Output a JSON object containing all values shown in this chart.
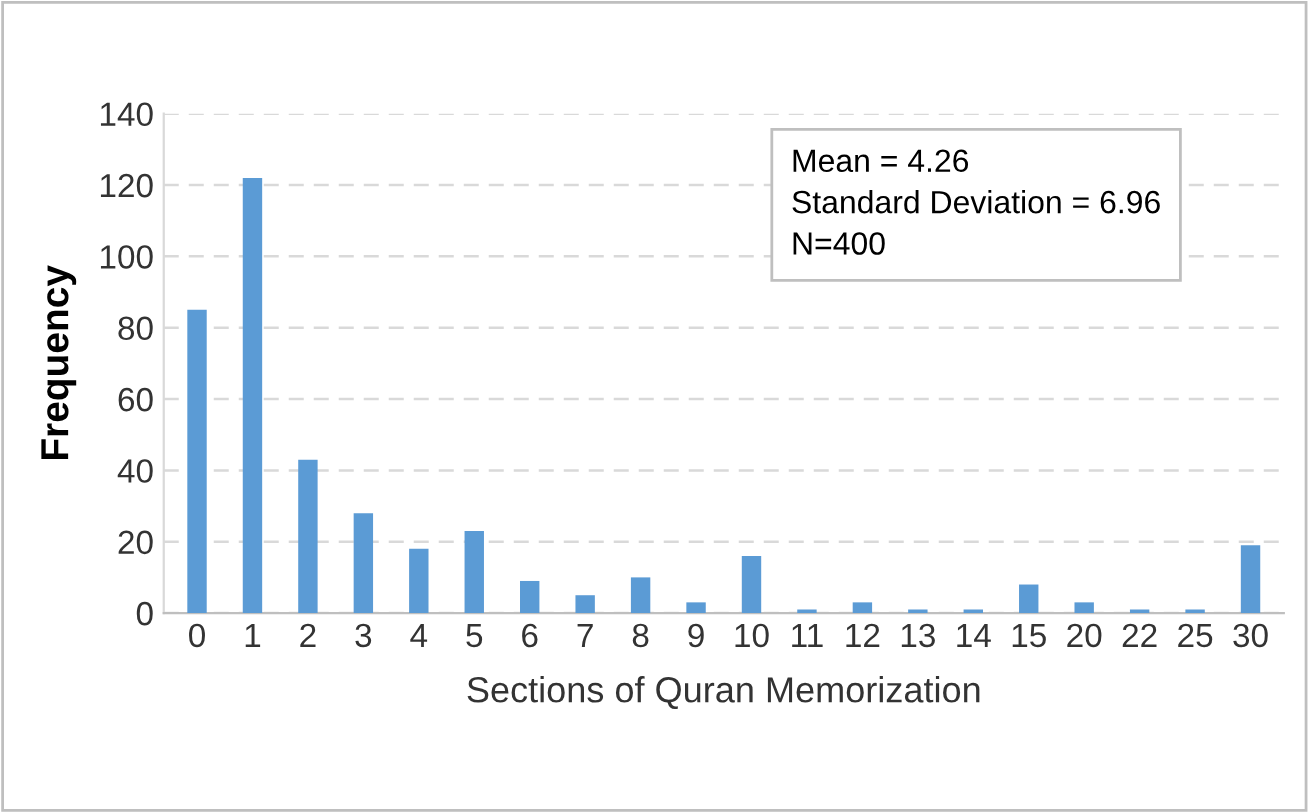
{
  "chart_data": {
    "type": "bar",
    "xlabel": "Sections of Quran Memorization",
    "ylabel": "Frequency",
    "categories": [
      "0",
      "1",
      "2",
      "3",
      "4",
      "5",
      "6",
      "7",
      "8",
      "9",
      "10",
      "11",
      "12",
      "13",
      "14",
      "15",
      "20",
      "22",
      "25",
      "30"
    ],
    "values": [
      85,
      122,
      43,
      28,
      18,
      23,
      9,
      5,
      10,
      3,
      16,
      1,
      3,
      1,
      1,
      8,
      3,
      1,
      1,
      19
    ],
    "color": "#5b9bd5",
    "ylim": [
      0,
      140
    ],
    "yticks": [
      0,
      20,
      40,
      60,
      80,
      100,
      120,
      140
    ],
    "grid": "y",
    "annotations": [
      "Mean = 4.26\nStandard Deviation = 6.96\nN=400"
    ]
  }
}
